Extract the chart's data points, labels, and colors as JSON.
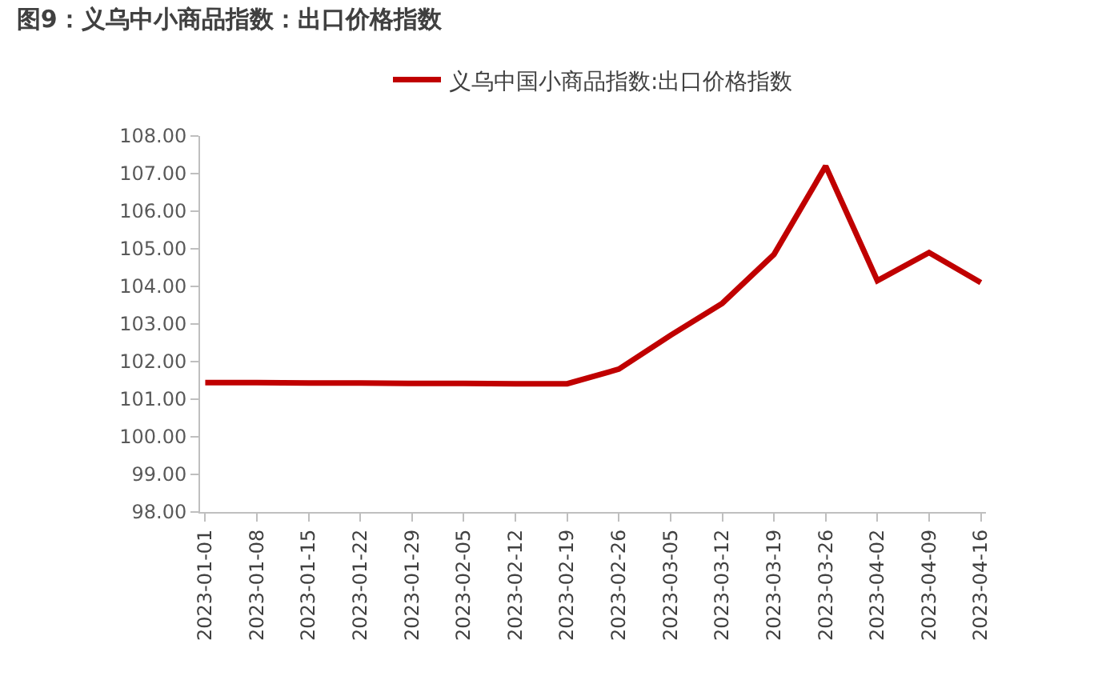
{
  "chart_data": {
    "type": "line",
    "title": "图9：义乌中小商品指数：出口价格指数",
    "categories": [
      "2023-01-01",
      "2023-01-08",
      "2023-01-15",
      "2023-01-22",
      "2023-01-29",
      "2023-02-05",
      "2023-02-12",
      "2023-02-19",
      "2023-02-26",
      "2023-03-05",
      "2023-03-12",
      "2023-03-19",
      "2023-03-26",
      "2023-04-02",
      "2023-04-09",
      "2023-04-16"
    ],
    "series": [
      {
        "name": "义乌中国小商品指数:出口价格指数",
        "color": "#c00000",
        "values": [
          101.44,
          101.44,
          101.43,
          101.43,
          101.42,
          101.42,
          101.41,
          101.41,
          101.8,
          102.7,
          103.55,
          104.85,
          107.2,
          104.15,
          104.9,
          104.1
        ]
      }
    ],
    "ylim": [
      98,
      108
    ],
    "yticks": [
      {
        "value": 98,
        "label": "98.00"
      },
      {
        "value": 99,
        "label": "99.00"
      },
      {
        "value": 100,
        "label": "100.00"
      },
      {
        "value": 101,
        "label": "101.00"
      },
      {
        "value": 102,
        "label": "102.00"
      },
      {
        "value": 103,
        "label": "103.00"
      },
      {
        "value": 104,
        "label": "104.00"
      },
      {
        "value": 105,
        "label": "105.00"
      },
      {
        "value": 106,
        "label": "106.00"
      },
      {
        "value": 107,
        "label": "107.00"
      },
      {
        "value": 108,
        "label": "108.00"
      }
    ],
    "legend": "top",
    "marker": "none",
    "line_style": "solid"
  }
}
